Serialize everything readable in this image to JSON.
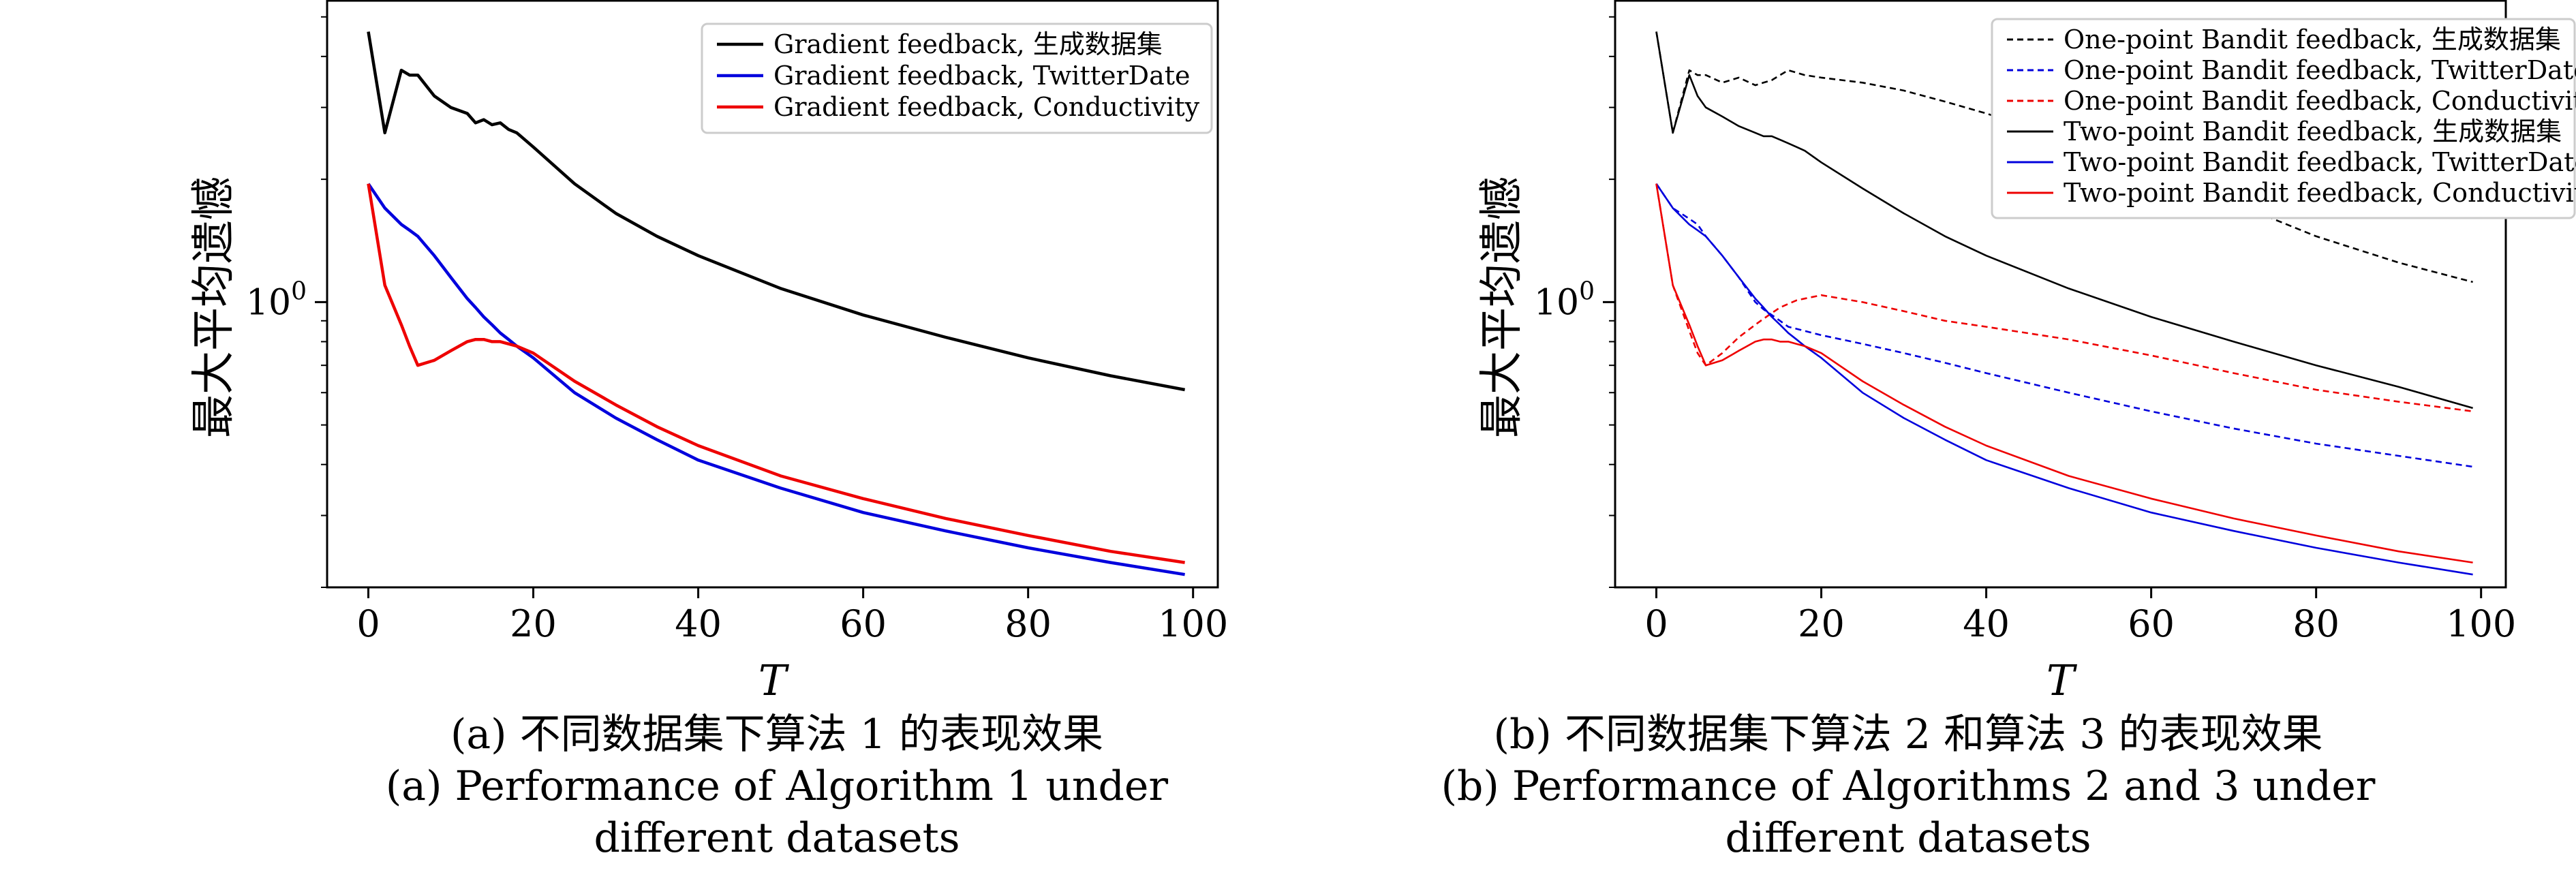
{
  "chart_data": [
    {
      "id": "panel_a",
      "type": "line",
      "xlabel": "T",
      "ylabel": "最大平均遗憾",
      "xlim": [
        -5,
        103
      ],
      "x_ticks": [
        0,
        20,
        40,
        60,
        80,
        100
      ],
      "y_scale": "log",
      "ylim": [
        0.2,
        5.5
      ],
      "y_tick_values": [
        1
      ],
      "y_tick_labels": [
        "10^0"
      ],
      "grid": false,
      "legend_position": "top-right",
      "x": [
        0,
        2,
        4,
        5,
        6,
        8,
        10,
        12,
        13,
        14,
        15,
        16,
        17,
        18,
        20,
        25,
        30,
        35,
        40,
        50,
        60,
        70,
        80,
        90,
        99
      ],
      "series": [
        {
          "name": "Gradient feedback, 生成数据集",
          "color": "#000000",
          "dash": "solid",
          "values": [
            4.6,
            2.6,
            3.7,
            3.6,
            3.6,
            3.2,
            3.0,
            2.9,
            2.75,
            2.8,
            2.72,
            2.75,
            2.65,
            2.6,
            2.4,
            1.95,
            1.65,
            1.45,
            1.3,
            1.08,
            0.93,
            0.82,
            0.73,
            0.66,
            0.61
          ]
        },
        {
          "name": "Gradient feedback, TwitterDate",
          "color": "#0000dd",
          "dash": "solid",
          "values": [
            1.95,
            1.7,
            1.55,
            1.5,
            1.45,
            1.3,
            1.15,
            1.02,
            0.97,
            0.92,
            0.88,
            0.84,
            0.81,
            0.78,
            0.73,
            0.6,
            0.52,
            0.46,
            0.41,
            0.35,
            0.305,
            0.275,
            0.25,
            0.23,
            0.215
          ]
        },
        {
          "name": "Gradient feedback, Conductivity",
          "color": "#ee0000",
          "dash": "solid",
          "values": [
            1.95,
            1.1,
            0.88,
            0.78,
            0.7,
            0.72,
            0.76,
            0.8,
            0.81,
            0.81,
            0.8,
            0.8,
            0.79,
            0.78,
            0.75,
            0.64,
            0.56,
            0.495,
            0.445,
            0.375,
            0.33,
            0.295,
            0.268,
            0.245,
            0.23
          ]
        }
      ],
      "caption_zh": "(a) 不同数据集下算法 1 的表现效果",
      "caption_en_1": "(a) Performance of Algorithm 1 under",
      "caption_en_2": "different datasets"
    },
    {
      "id": "panel_b",
      "type": "line",
      "xlabel": "T",
      "ylabel": "最大平均遗憾",
      "xlim": [
        -5,
        103
      ],
      "x_ticks": [
        0,
        20,
        40,
        60,
        80,
        100
      ],
      "y_scale": "log",
      "ylim": [
        0.2,
        5.5
      ],
      "y_tick_values": [
        1
      ],
      "y_tick_labels": [
        "10^0"
      ],
      "grid": false,
      "legend_position": "top-right",
      "x": [
        0,
        2,
        4,
        5,
        6,
        8,
        10,
        12,
        13,
        14,
        15,
        16,
        17,
        18,
        20,
        25,
        30,
        35,
        40,
        50,
        60,
        70,
        80,
        90,
        99
      ],
      "series": [
        {
          "name": "One-point Bandit feedback, 生成数据集",
          "color": "#000000",
          "dash": "dashed",
          "values": [
            4.6,
            2.6,
            3.7,
            3.6,
            3.6,
            3.45,
            3.55,
            3.4,
            3.45,
            3.5,
            3.6,
            3.7,
            3.65,
            3.6,
            3.55,
            3.45,
            3.3,
            3.1,
            2.9,
            2.5,
            2.1,
            1.75,
            1.45,
            1.25,
            1.12
          ]
        },
        {
          "name": "One-point Bandit feedback, TwitterDate",
          "color": "#0000dd",
          "dash": "dashed",
          "values": [
            1.95,
            1.7,
            1.6,
            1.55,
            1.45,
            1.3,
            1.15,
            1.0,
            0.96,
            0.93,
            0.9,
            0.87,
            0.86,
            0.85,
            0.83,
            0.79,
            0.75,
            0.71,
            0.67,
            0.6,
            0.54,
            0.49,
            0.45,
            0.42,
            0.395
          ]
        },
        {
          "name": "One-point Bandit feedback, Conductivity",
          "color": "#ee0000",
          "dash": "dashed",
          "values": [
            1.95,
            1.1,
            0.85,
            0.75,
            0.7,
            0.75,
            0.82,
            0.88,
            0.91,
            0.94,
            0.97,
            0.99,
            1.01,
            1.02,
            1.04,
            1.0,
            0.95,
            0.9,
            0.87,
            0.81,
            0.74,
            0.67,
            0.61,
            0.57,
            0.54
          ]
        },
        {
          "name": "Two-point Bandit feedback, 生成数据集",
          "color": "#000000",
          "dash": "solid",
          "values": [
            4.6,
            2.6,
            3.6,
            3.2,
            3.0,
            2.85,
            2.7,
            2.6,
            2.55,
            2.55,
            2.5,
            2.45,
            2.4,
            2.35,
            2.2,
            1.9,
            1.65,
            1.45,
            1.3,
            1.08,
            0.92,
            0.8,
            0.7,
            0.62,
            0.55
          ]
        },
        {
          "name": "Two-point Bandit feedback, TwitterDate",
          "color": "#0000dd",
          "dash": "solid",
          "values": [
            1.95,
            1.7,
            1.55,
            1.5,
            1.45,
            1.3,
            1.15,
            1.02,
            0.97,
            0.92,
            0.88,
            0.84,
            0.81,
            0.78,
            0.73,
            0.6,
            0.52,
            0.46,
            0.41,
            0.35,
            0.305,
            0.275,
            0.25,
            0.23,
            0.215
          ]
        },
        {
          "name": "Two-point Bandit feedback, Conductivity",
          "color": "#ee0000",
          "dash": "solid",
          "values": [
            1.95,
            1.1,
            0.88,
            0.78,
            0.7,
            0.72,
            0.76,
            0.8,
            0.81,
            0.81,
            0.8,
            0.8,
            0.79,
            0.78,
            0.75,
            0.64,
            0.56,
            0.495,
            0.445,
            0.375,
            0.33,
            0.295,
            0.268,
            0.245,
            0.23
          ]
        }
      ],
      "caption_zh": "(b) 不同数据集下算法 2 和算法 3 的表现效果",
      "caption_en_1": "(b) Performance of Algorithms 2 and 3 under",
      "caption_en_2": "different datasets"
    }
  ]
}
